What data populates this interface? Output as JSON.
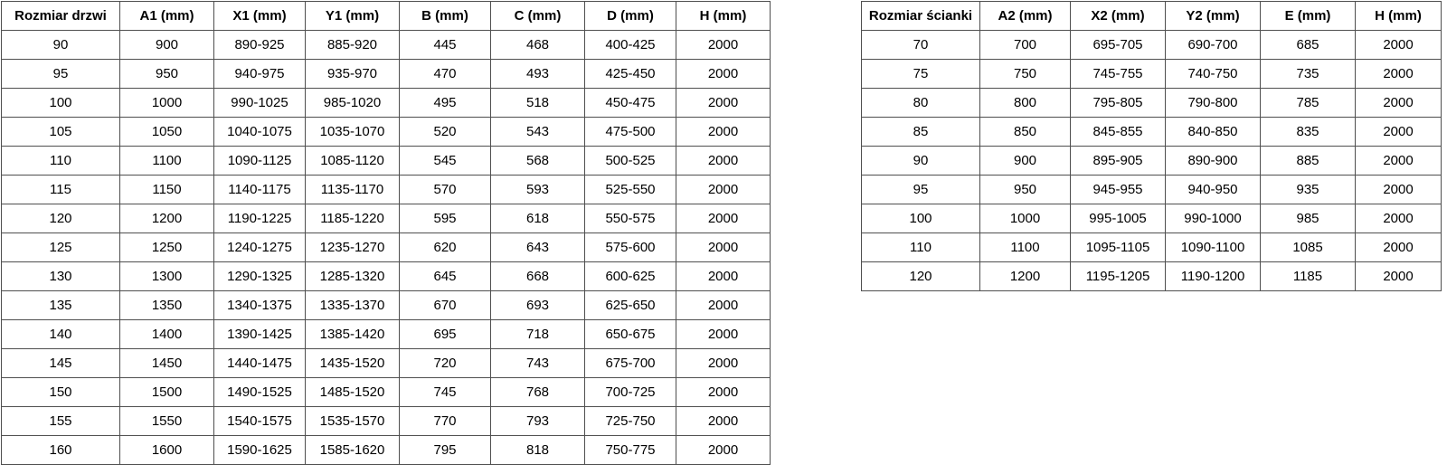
{
  "page": {
    "background_color": "#ffffff",
    "text_color": "#000000",
    "border_color": "#4f4f4f"
  },
  "tables": [
    {
      "name": "doors-size-table",
      "headers": [
        "Rozmiar drzwi",
        "A1 (mm)",
        "X1 (mm)",
        "Y1 (mm)",
        "B (mm)",
        "C (mm)",
        "D (mm)",
        "H (mm)"
      ],
      "rows": [
        [
          "90",
          "900",
          "890-925",
          "885-920",
          "445",
          "468",
          "400-425",
          "2000"
        ],
        [
          "95",
          "950",
          "940-975",
          "935-970",
          "470",
          "493",
          "425-450",
          "2000"
        ],
        [
          "100",
          "1000",
          "990-1025",
          "985-1020",
          "495",
          "518",
          "450-475",
          "2000"
        ],
        [
          "105",
          "1050",
          "1040-1075",
          "1035-1070",
          "520",
          "543",
          "475-500",
          "2000"
        ],
        [
          "110",
          "1100",
          "1090-1125",
          "1085-1120",
          "545",
          "568",
          "500-525",
          "2000"
        ],
        [
          "115",
          "1150",
          "1140-1175",
          "1135-1170",
          "570",
          "593",
          "525-550",
          "2000"
        ],
        [
          "120",
          "1200",
          "1190-1225",
          "1185-1220",
          "595",
          "618",
          "550-575",
          "2000"
        ],
        [
          "125",
          "1250",
          "1240-1275",
          "1235-1270",
          "620",
          "643",
          "575-600",
          "2000"
        ],
        [
          "130",
          "1300",
          "1290-1325",
          "1285-1320",
          "645",
          "668",
          "600-625",
          "2000"
        ],
        [
          "135",
          "1350",
          "1340-1375",
          "1335-1370",
          "670",
          "693",
          "625-650",
          "2000"
        ],
        [
          "140",
          "1400",
          "1390-1425",
          "1385-1420",
          "695",
          "718",
          "650-675",
          "2000"
        ],
        [
          "145",
          "1450",
          "1440-1475",
          "1435-1520",
          "720",
          "743",
          "675-700",
          "2000"
        ],
        [
          "150",
          "1500",
          "1490-1525",
          "1485-1520",
          "745",
          "768",
          "700-725",
          "2000"
        ],
        [
          "155",
          "1550",
          "1540-1575",
          "1535-1570",
          "770",
          "793",
          "725-750",
          "2000"
        ],
        [
          "160",
          "1600",
          "1590-1625",
          "1585-1620",
          "795",
          "818",
          "750-775",
          "2000"
        ]
      ]
    },
    {
      "name": "wall-panel-size-table",
      "headers": [
        "Rozmiar ścianki",
        "A2 (mm)",
        "X2 (mm)",
        "Y2 (mm)",
        "E (mm)",
        "H (mm)"
      ],
      "rows": [
        [
          "70",
          "700",
          "695-705",
          "690-700",
          "685",
          "2000"
        ],
        [
          "75",
          "750",
          "745-755",
          "740-750",
          "735",
          "2000"
        ],
        [
          "80",
          "800",
          "795-805",
          "790-800",
          "785",
          "2000"
        ],
        [
          "85",
          "850",
          "845-855",
          "840-850",
          "835",
          "2000"
        ],
        [
          "90",
          "900",
          "895-905",
          "890-900",
          "885",
          "2000"
        ],
        [
          "95",
          "950",
          "945-955",
          "940-950",
          "935",
          "2000"
        ],
        [
          "100",
          "1000",
          "995-1005",
          "990-1000",
          "985",
          "2000"
        ],
        [
          "110",
          "1100",
          "1095-1105",
          "1090-1100",
          "1085",
          "2000"
        ],
        [
          "120",
          "1200",
          "1195-1205",
          "1190-1200",
          "1185",
          "2000"
        ]
      ]
    }
  ]
}
